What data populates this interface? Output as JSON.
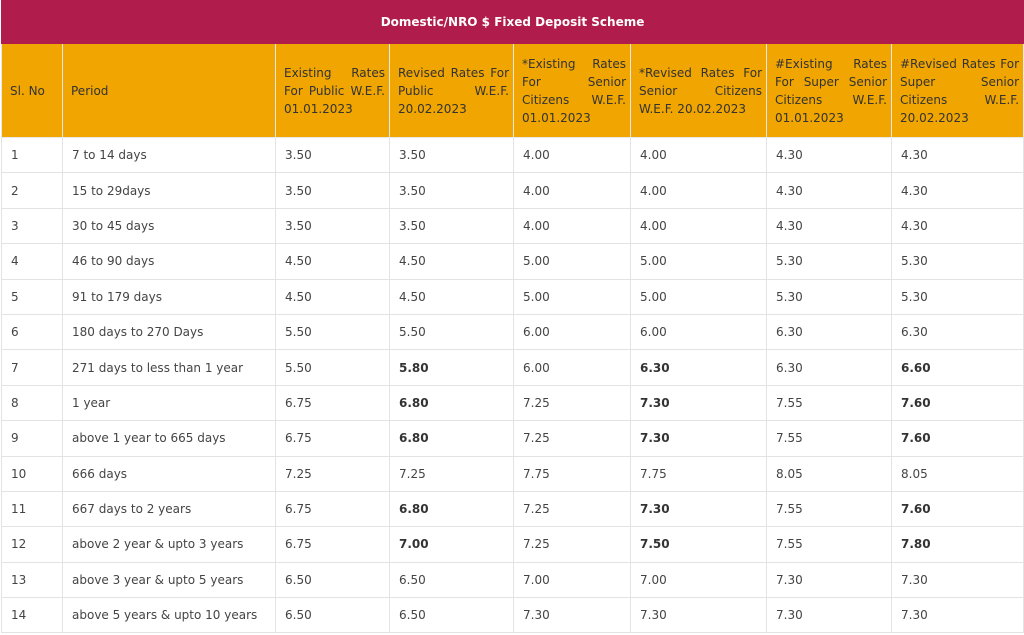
{
  "table": {
    "title": "Domestic/NRO $ Fixed Deposit Scheme",
    "headers": [
      "Sl. No",
      "Period",
      "Existing Rates For Public W.E.F. 01.01.2023",
      "Revised Rates For Public W.E.F. 20.02.2023",
      "*Existing Rates For Senior Citizens W.E.F. 01.01.2023",
      "*Revised Rates For Senior Citizens W.E.F. 20.02.2023",
      "#Existing Rates For Super Senior Citizens W.E.F. 01.01.2023",
      "#Revised Rates For Super Senior Citizens W.E.F. 20.02.2023"
    ],
    "rows": [
      {
        "sl": "1",
        "period": "7 to 14 days",
        "c1": "3.50",
        "c2": "3.50",
        "c3": "4.00",
        "c4": "4.00",
        "c5": "4.30",
        "c6": "4.30"
      },
      {
        "sl": "2",
        "period": "15 to 29days",
        "c1": "3.50",
        "c2": "3.50",
        "c3": "4.00",
        "c4": "4.00",
        "c5": "4.30",
        "c6": "4.30"
      },
      {
        "sl": "3",
        "period": "30 to 45 days",
        "c1": "3.50",
        "c2": "3.50",
        "c3": "4.00",
        "c4": "4.00",
        "c5": "4.30",
        "c6": "4.30"
      },
      {
        "sl": "4",
        "period": "46 to 90 days",
        "c1": "4.50",
        "c2": "4.50",
        "c3": "5.00",
        "c4": "5.00",
        "c5": "5.30",
        "c6": "5.30"
      },
      {
        "sl": "5",
        "period": "91 to 179 days",
        "c1": "4.50",
        "c2": "4.50",
        "c3": "5.00",
        "c4": "5.00",
        "c5": "5.30",
        "c6": "5.30"
      },
      {
        "sl": "6",
        "period": "180 days to 270 Days",
        "c1": "5.50",
        "c2": "5.50",
        "c3": "6.00",
        "c4": "6.00",
        "c5": "6.30",
        "c6": "6.30"
      },
      {
        "sl": "7",
        "period": "271 days to less than 1 year",
        "c1": "5.50",
        "c2": "5.80",
        "c3": "6.00",
        "c4": "6.30",
        "c5": "6.30",
        "c6": "6.60",
        "bold": true
      },
      {
        "sl": "8",
        "period": "1 year",
        "c1": "6.75",
        "c2": "6.80",
        "c3": "7.25",
        "c4": "7.30",
        "c5": "7.55",
        "c6": "7.60",
        "bold": true
      },
      {
        "sl": "9",
        "period": "above 1 year to 665 days",
        "c1": "6.75",
        "c2": "6.80",
        "c3": "7.25",
        "c4": "7.30",
        "c5": "7.55",
        "c6": "7.60",
        "bold": true
      },
      {
        "sl": "10",
        "period": "666 days",
        "c1": "7.25",
        "c2": "7.25",
        "c3": "7.75",
        "c4": "7.75",
        "c5": "8.05",
        "c6": "8.05"
      },
      {
        "sl": "11",
        "period": "667 days to 2 years",
        "c1": "6.75",
        "c2": "6.80",
        "c3": "7.25",
        "c4": "7.30",
        "c5": "7.55",
        "c6": "7.60",
        "bold": true
      },
      {
        "sl": "12",
        "period": "above 2 year & upto 3 years",
        "c1": "6.75",
        "c2": "7.00",
        "c3": "7.25",
        "c4": "7.50",
        "c5": "7.55",
        "c6": "7.80",
        "bold": true
      },
      {
        "sl": "13",
        "period": "above 3 year & upto 5 years",
        "c1": "6.50",
        "c2": "6.50",
        "c3": "7.00",
        "c4": "7.00",
        "c5": "7.30",
        "c6": "7.30"
      },
      {
        "sl": "14",
        "period": "above 5 years & upto 10 years",
        "c1": "6.50",
        "c2": "6.50",
        "c3": "7.30",
        "c4": "7.30",
        "c5": "7.30",
        "c6": "7.30"
      }
    ]
  },
  "colors": {
    "title_bg": "#b01c4b",
    "header_bg": "#f0a500"
  }
}
